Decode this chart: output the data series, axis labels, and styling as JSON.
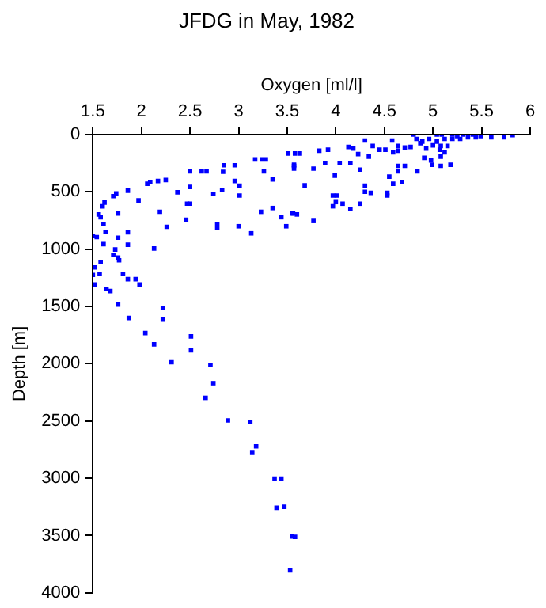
{
  "chart_data": {
    "type": "scatter",
    "title": "JFDG in May, 1982",
    "xlabel": "Oxygen [ml/l]",
    "ylabel": "Depth [m]",
    "xlim": [
      1.5,
      6
    ],
    "xticks": [
      1.5,
      2,
      2.5,
      3,
      3.5,
      4,
      4.5,
      5,
      5.5,
      6
    ],
    "ylim": [
      4000,
      0
    ],
    "yticks": [
      0,
      500,
      1000,
      1500,
      2000,
      2500,
      3000,
      3500,
      4000
    ],
    "grid": false,
    "legend": false,
    "marker": "square",
    "series": [
      {
        "color": "#0000ff",
        "x": [
          3.51,
          3.58,
          3.63,
          3.17,
          3.24,
          3.28,
          3.57,
          3.57,
          2.85,
          2.96,
          2.5,
          2.62,
          2.67,
          2.84,
          3.26,
          2.96,
          3.01,
          3.35,
          2.06,
          2.09,
          2.17,
          2.25,
          2.5,
          2.83,
          3.01,
          2.37,
          2.74,
          1.86,
          1.74,
          1.71,
          1.97,
          2.47,
          2.5,
          1.62,
          1.6,
          3.35,
          3.23,
          2.19,
          1.76,
          3.44,
          3.55,
          3.6,
          1.56,
          1.58,
          2.46,
          1.61,
          2.26,
          2.78,
          2.78,
          3.0,
          3.49,
          3.13,
          1.5,
          1.54,
          1.63,
          1.86,
          1.76,
          1.61,
          1.86,
          2.13,
          1.73,
          1.71,
          1.76,
          1.77,
          1.58,
          1.52,
          1.5,
          1.57,
          1.81,
          1.86,
          1.94,
          1.98,
          1.52,
          1.64,
          1.68,
          1.76,
          1.87,
          2.22,
          2.22,
          3.83,
          3.92,
          4.13,
          4.18,
          4.23,
          4.3,
          4.38,
          4.45,
          4.51,
          4.34,
          4.58,
          4.64,
          4.71,
          4.77,
          4.59,
          4.64,
          3.57,
          3.77,
          3.89,
          4.04,
          4.15,
          4.25,
          4.64,
          4.71,
          4.64,
          4.84,
          4.91,
          4.98,
          4.99,
          5.08,
          5.18,
          5.08,
          3.68,
          3.99,
          4.55,
          4.68,
          4.59,
          4.3,
          4.3,
          4.36,
          4.53,
          4.53,
          3.97,
          4.01,
          4.0,
          4.07,
          4.15,
          4.25,
          3.97,
          3.56,
          3.77,
          4.8,
          4.83,
          4.89,
          4.96,
          5.04,
          5.09,
          5.2,
          5.31,
          5.41,
          5.49,
          5.6,
          5.73,
          5.82,
          5.04,
          5.12,
          5.2,
          5.28,
          5.36,
          5.08,
          5.15,
          5.12,
          5.07,
          5.0,
          4.93,
          4.87,
          5.25,
          5.44,
          2.04,
          2.13,
          2.51,
          2.51,
          2.31,
          2.71,
          2.74,
          2.66,
          2.89,
          3.12,
          3.18,
          3.14,
          3.37,
          3.44,
          3.39,
          3.47,
          3.55,
          3.58,
          3.53
        ],
        "values": [
          165,
          165,
          165,
          217,
          217,
          217,
          264,
          297,
          268,
          268,
          320,
          320,
          320,
          325,
          320,
          405,
          447,
          391,
          429,
          414,
          405,
          396,
          457,
          485,
          532,
          504,
          518,
          490,
          513,
          537,
          575,
          603,
          603,
          593,
          626,
          641,
          674,
          674,
          688,
          721,
          688,
          697,
          697,
          721,
          744,
          782,
          805,
          782,
          815,
          800,
          800,
          862,
          885,
          895,
          848,
          853,
          900,
          956,
          961,
          994,
          1003,
          1050,
          1074,
          1097,
          1112,
          1159,
          1225,
          1215,
          1215,
          1262,
          1262,
          1309,
          1309,
          1347,
          1366,
          1484,
          1601,
          1512,
          1615,
          141,
          132,
          108,
          122,
          170,
          52,
          99,
          132,
          132,
          193,
          52,
          99,
          113,
          108,
          155,
          141,
          273,
          297,
          250,
          250,
          250,
          306,
          273,
          273,
          320,
          320,
          203,
          226,
          264,
          193,
          264,
          273,
          443,
          358,
          367,
          414,
          429,
          447,
          499,
          509,
          509,
          532,
          532,
          532,
          589,
          603,
          650,
          603,
          626,
          688,
          754,
          0,
          38,
          61,
          38,
          0,
          0,
          0,
          0,
          0,
          14,
          24,
          24,
          5,
          61,
          38,
          38,
          38,
          24,
          99,
          99,
          155,
          132,
          94,
          122,
          75,
          14,
          24,
          1732,
          1831,
          1761,
          1883,
          1987,
          2010,
          2170,
          2298,
          2495,
          2509,
          2721,
          2778,
          3004,
          3004,
          3258,
          3249,
          3508,
          3512,
          3804
        ]
      }
    ]
  }
}
